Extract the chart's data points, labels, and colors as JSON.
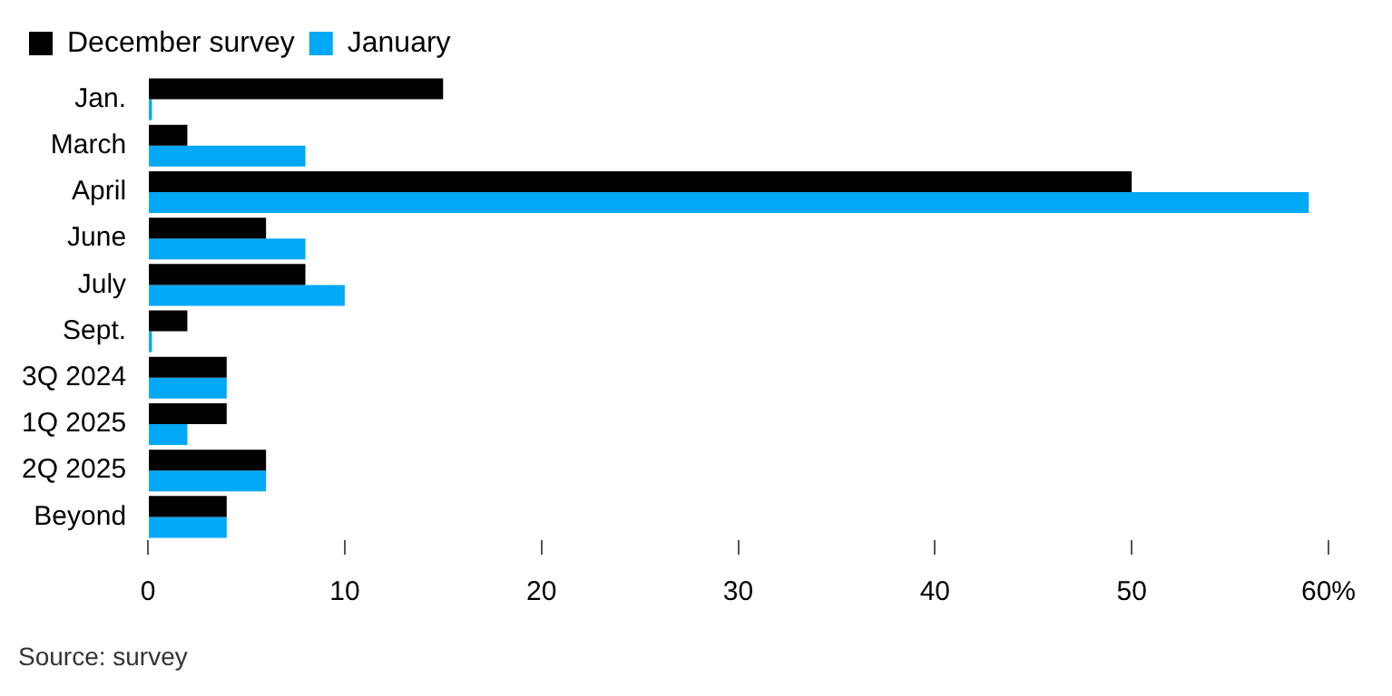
{
  "chart_data": {
    "type": "bar",
    "orientation": "horizontal",
    "categories": [
      "Jan.",
      "March",
      "April",
      "June",
      "July",
      "Sept.",
      "3Q 2024",
      "1Q 2025",
      "2Q 2025",
      "Beyond"
    ],
    "series": [
      {
        "name": "December survey",
        "color": "#000000",
        "values": [
          15,
          2,
          50,
          6,
          8,
          2,
          4,
          4,
          6,
          4
        ]
      },
      {
        "name": "January",
        "color": "#00a8f5",
        "values": [
          0.2,
          8,
          59,
          8,
          10,
          0.2,
          4,
          2,
          6,
          4
        ]
      }
    ],
    "xlim": [
      0,
      60
    ],
    "xticks": [
      0,
      10,
      20,
      30,
      40,
      50,
      {
        "value": 60,
        "label": "60%"
      }
    ],
    "grid": false,
    "legend": "top left",
    "annotations": [
      "Source: survey"
    ]
  }
}
